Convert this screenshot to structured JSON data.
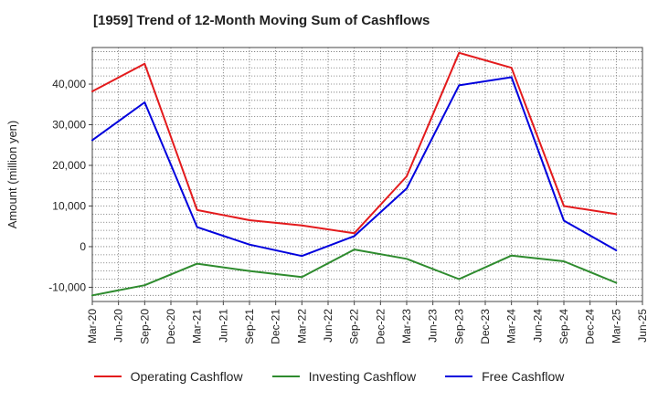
{
  "chart_data": {
    "type": "line",
    "title": "[1959]  Trend of 12-Month Moving Sum of Cashflows",
    "ylabel": "Amount (million yen)",
    "xlabel": "",
    "ylim": [
      -13500,
      49000
    ],
    "yticks": [
      -10000,
      0,
      10000,
      20000,
      30000,
      40000
    ],
    "ytick_labels": [
      "-10,000",
      "0",
      "10,000",
      "20,000",
      "30,000",
      "40,000"
    ],
    "x_axis_labels": [
      "Mar-20",
      "Jun-20",
      "Sep-20",
      "Dec-20",
      "Mar-21",
      "Jun-21",
      "Sep-21",
      "Dec-21",
      "Mar-22",
      "Jun-22",
      "Sep-22",
      "Dec-22",
      "Mar-23",
      "Jun-23",
      "Sep-23",
      "Dec-23",
      "Mar-24",
      "Jun-24",
      "Sep-24",
      "Dec-24",
      "Mar-25",
      "Jun-25"
    ],
    "grid": true,
    "legend_position": "bottom",
    "series": [
      {
        "name": "Operating Cashflow",
        "color": "#e31a1c",
        "x": [
          "Mar-20",
          "Sep-20",
          "Mar-21",
          "Sep-21",
          "Mar-22",
          "Sep-22",
          "Mar-23",
          "Sep-23",
          "Mar-24",
          "Sep-24",
          "Mar-25"
        ],
        "values": [
          38200,
          45000,
          9000,
          6500,
          5200,
          3300,
          17300,
          47700,
          44000,
          10000,
          8000
        ]
      },
      {
        "name": "Investing Cashflow",
        "color": "#2e8b2e",
        "x": [
          "Mar-20",
          "Sep-20",
          "Mar-21",
          "Sep-21",
          "Mar-22",
          "Sep-22",
          "Mar-23",
          "Sep-23",
          "Mar-24",
          "Sep-24",
          "Mar-25"
        ],
        "values": [
          -12000,
          -9500,
          -4200,
          -6000,
          -7500,
          -700,
          -3000,
          -8000,
          -2200,
          -3600,
          -8900
        ]
      },
      {
        "name": "Free Cashflow",
        "color": "#0000dd",
        "x": [
          "Mar-20",
          "Sep-20",
          "Mar-21",
          "Sep-21",
          "Mar-22",
          "Sep-22",
          "Mar-23",
          "Sep-23",
          "Mar-24",
          "Sep-24",
          "Mar-25"
        ],
        "values": [
          26200,
          35500,
          4800,
          500,
          -2300,
          2600,
          14300,
          39700,
          41700,
          6400,
          -900
        ]
      }
    ]
  }
}
